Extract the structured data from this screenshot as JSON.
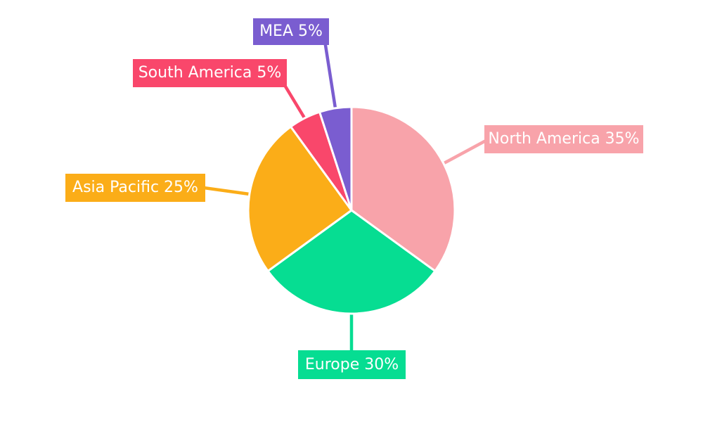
{
  "chart_data": {
    "type": "pie",
    "title": "",
    "categories": [
      "North America",
      "Europe",
      "Asia Pacific",
      "South America",
      "MEA"
    ],
    "values": [
      35,
      30,
      25,
      5,
      5
    ],
    "unit": "%",
    "colors": [
      "#F8A3AA",
      "#06DD92",
      "#FBAD18",
      "#F9476B",
      "#7A5DD0"
    ],
    "slice_gap_color": "#FFFFFF",
    "background": "#FFFFFF",
    "start_angle": "12-oclock",
    "direction": "clockwise",
    "legend": "none",
    "labels": [
      {
        "text": "North America 35%"
      },
      {
        "text": "Europe 30%"
      },
      {
        "text": "Asia Pacific 25%"
      },
      {
        "text": "South America 5%"
      },
      {
        "text": "MEA 5%"
      }
    ]
  }
}
